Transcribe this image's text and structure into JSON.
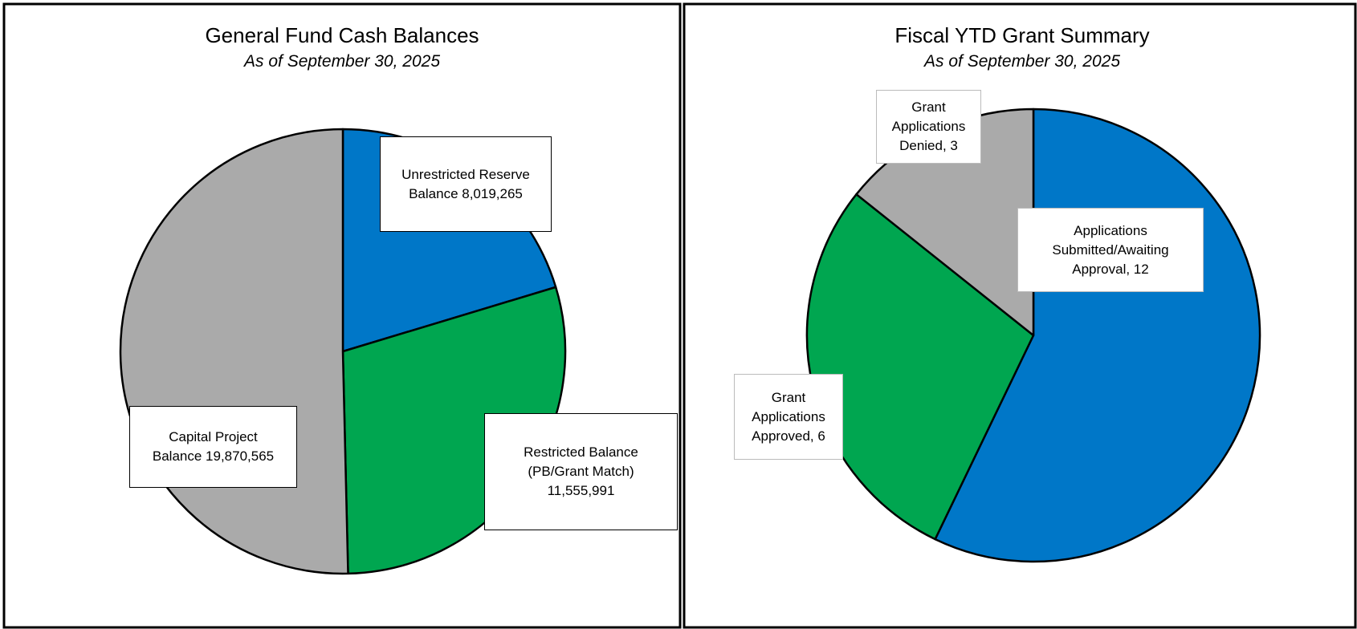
{
  "chart_data": [
    {
      "type": "pie",
      "title": "General Fund Cash Balances",
      "subtitle": "As of September 30, 2025",
      "values": [
        8019265,
        11555991,
        19870565
      ],
      "value_labels": [
        "Unrestricted Reserve\nBalance  8,019,265",
        "Restricted Balance\n(PB/Grant Match)\n11,555,991",
        "Capital Project\nBalance  19,870,565"
      ],
      "colors": [
        "#0077c8",
        "#00a650",
        "#aaaaaa"
      ]
    },
    {
      "type": "pie",
      "title": "Fiscal YTD Grant Summary",
      "subtitle": "As of September 30, 2025",
      "values": [
        12,
        6,
        3
      ],
      "value_labels": [
        "Applications\nSubmitted/Awaiting\nApproval, 12",
        "Grant\nApplications\nApproved, 6",
        "Grant\nApplications\nDenied, 3"
      ],
      "colors": [
        "#0077c8",
        "#00a650",
        "#aaaaaa"
      ]
    }
  ]
}
